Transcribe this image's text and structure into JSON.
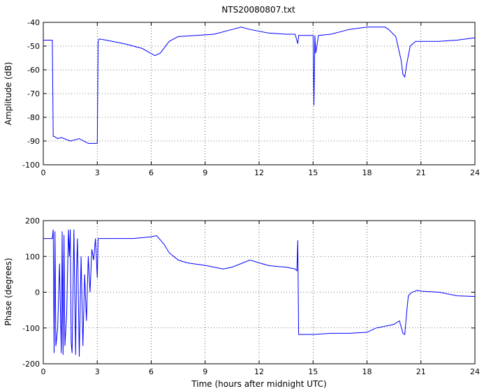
{
  "chart_data": [
    {
      "type": "line",
      "title": "NTS20080807.txt",
      "xlabel": "",
      "ylabel": "Amplitude (dB)",
      "xlim": [
        0,
        24
      ],
      "ylim": [
        -100,
        -40
      ],
      "xticks": [
        0,
        3,
        6,
        9,
        12,
        15,
        18,
        21,
        24
      ],
      "yticks": [
        -100,
        -90,
        -80,
        -70,
        -60,
        -50,
        -40
      ],
      "grid": true,
      "series_color": "#0000ff",
      "series": [
        {
          "x": [
            0,
            0.5,
            0.55,
            0.6,
            0.8,
            1.0,
            1.5,
            2.0,
            2.5,
            3.0,
            3.05,
            3.1,
            3.5,
            4.5,
            5.5,
            6.2,
            6.5,
            7.0,
            7.5,
            8.5,
            9.5,
            10.5,
            11.0,
            11.5,
            12.5,
            13.5,
            14.0,
            14.15,
            14.2,
            14.3,
            15.0,
            15.05,
            15.1,
            15.15,
            15.3,
            16,
            17,
            18,
            18.5,
            19.0,
            19.2,
            19.6,
            19.9,
            20.0,
            20.1,
            20.2,
            20.4,
            20.7,
            21.0,
            22.0,
            23.0,
            24.0
          ],
          "y": [
            -47.5,
            -47.5,
            -88,
            -88,
            -89,
            -88.5,
            -90,
            -89,
            -91,
            -91,
            -48,
            -47,
            -47.5,
            -49,
            -51,
            -54,
            -53,
            -48,
            -46,
            -45.5,
            -45,
            -43,
            -42,
            -43,
            -44.5,
            -45,
            -45,
            -49,
            -45.5,
            -45.5,
            -45.5,
            -75,
            -45.5,
            -53,
            -45.5,
            -45,
            -43,
            -42,
            -42,
            -42,
            -43,
            -46,
            -56,
            -62,
            -63,
            -58,
            -50,
            -48,
            -48,
            -48,
            -47.5,
            -46.5
          ]
        }
      ]
    },
    {
      "type": "line",
      "title": "",
      "xlabel": "Time (hours after midnight UTC)",
      "ylabel": "Phase (degrees)",
      "xlim": [
        0,
        24
      ],
      "ylim": [
        -200,
        200
      ],
      "xticks": [
        0,
        3,
        6,
        9,
        12,
        15,
        18,
        21,
        24
      ],
      "yticks": [
        -200,
        -100,
        0,
        100,
        200
      ],
      "grid": true,
      "series_color": "#0000ff",
      "series": [
        {
          "x": [
            0,
            0.5,
            0.55,
            0.6,
            0.65,
            0.7,
            0.8,
            0.9,
            1.0,
            1.05,
            1.1,
            1.15,
            1.2,
            1.3,
            1.4,
            1.45,
            1.5,
            1.55,
            1.6,
            1.7,
            1.8,
            1.85,
            1.9,
            2.0,
            2.1,
            2.2,
            2.3,
            2.4,
            2.5,
            2.6,
            2.7,
            2.8,
            2.9,
            3.0,
            3.05,
            3.1,
            4.0,
            5.0,
            6.0,
            6.3,
            6.7,
            7.0,
            7.5,
            8.0,
            9.0,
            10.0,
            10.5,
            11.0,
            11.5,
            12.0,
            12.5,
            13.0,
            13.5,
            14.0,
            14.1,
            14.15,
            14.2,
            15,
            16,
            17,
            18,
            18.5,
            19.0,
            19.5,
            19.8,
            20.0,
            20.1,
            20.2,
            20.3,
            20.5,
            20.8,
            21.0,
            22.0,
            23.0,
            24.0
          ],
          "y": [
            150,
            150,
            175,
            -170,
            170,
            -150,
            -100,
            80,
            -170,
            170,
            -175,
            160,
            -150,
            -60,
            175,
            100,
            175,
            -140,
            -170,
            175,
            -175,
            60,
            150,
            -180,
            100,
            -150,
            50,
            -80,
            100,
            0,
            120,
            90,
            150,
            40,
            150,
            150,
            150,
            150,
            155,
            158,
            135,
            110,
            90,
            82,
            75,
            65,
            70,
            80,
            90,
            82,
            75,
            72,
            70,
            65,
            60,
            145,
            -118,
            -118,
            -115,
            -115,
            -112,
            -100,
            -95,
            -90,
            -80,
            -115,
            -118,
            -60,
            -10,
            0,
            5,
            3,
            0,
            -10,
            -12
          ]
        }
      ]
    }
  ]
}
